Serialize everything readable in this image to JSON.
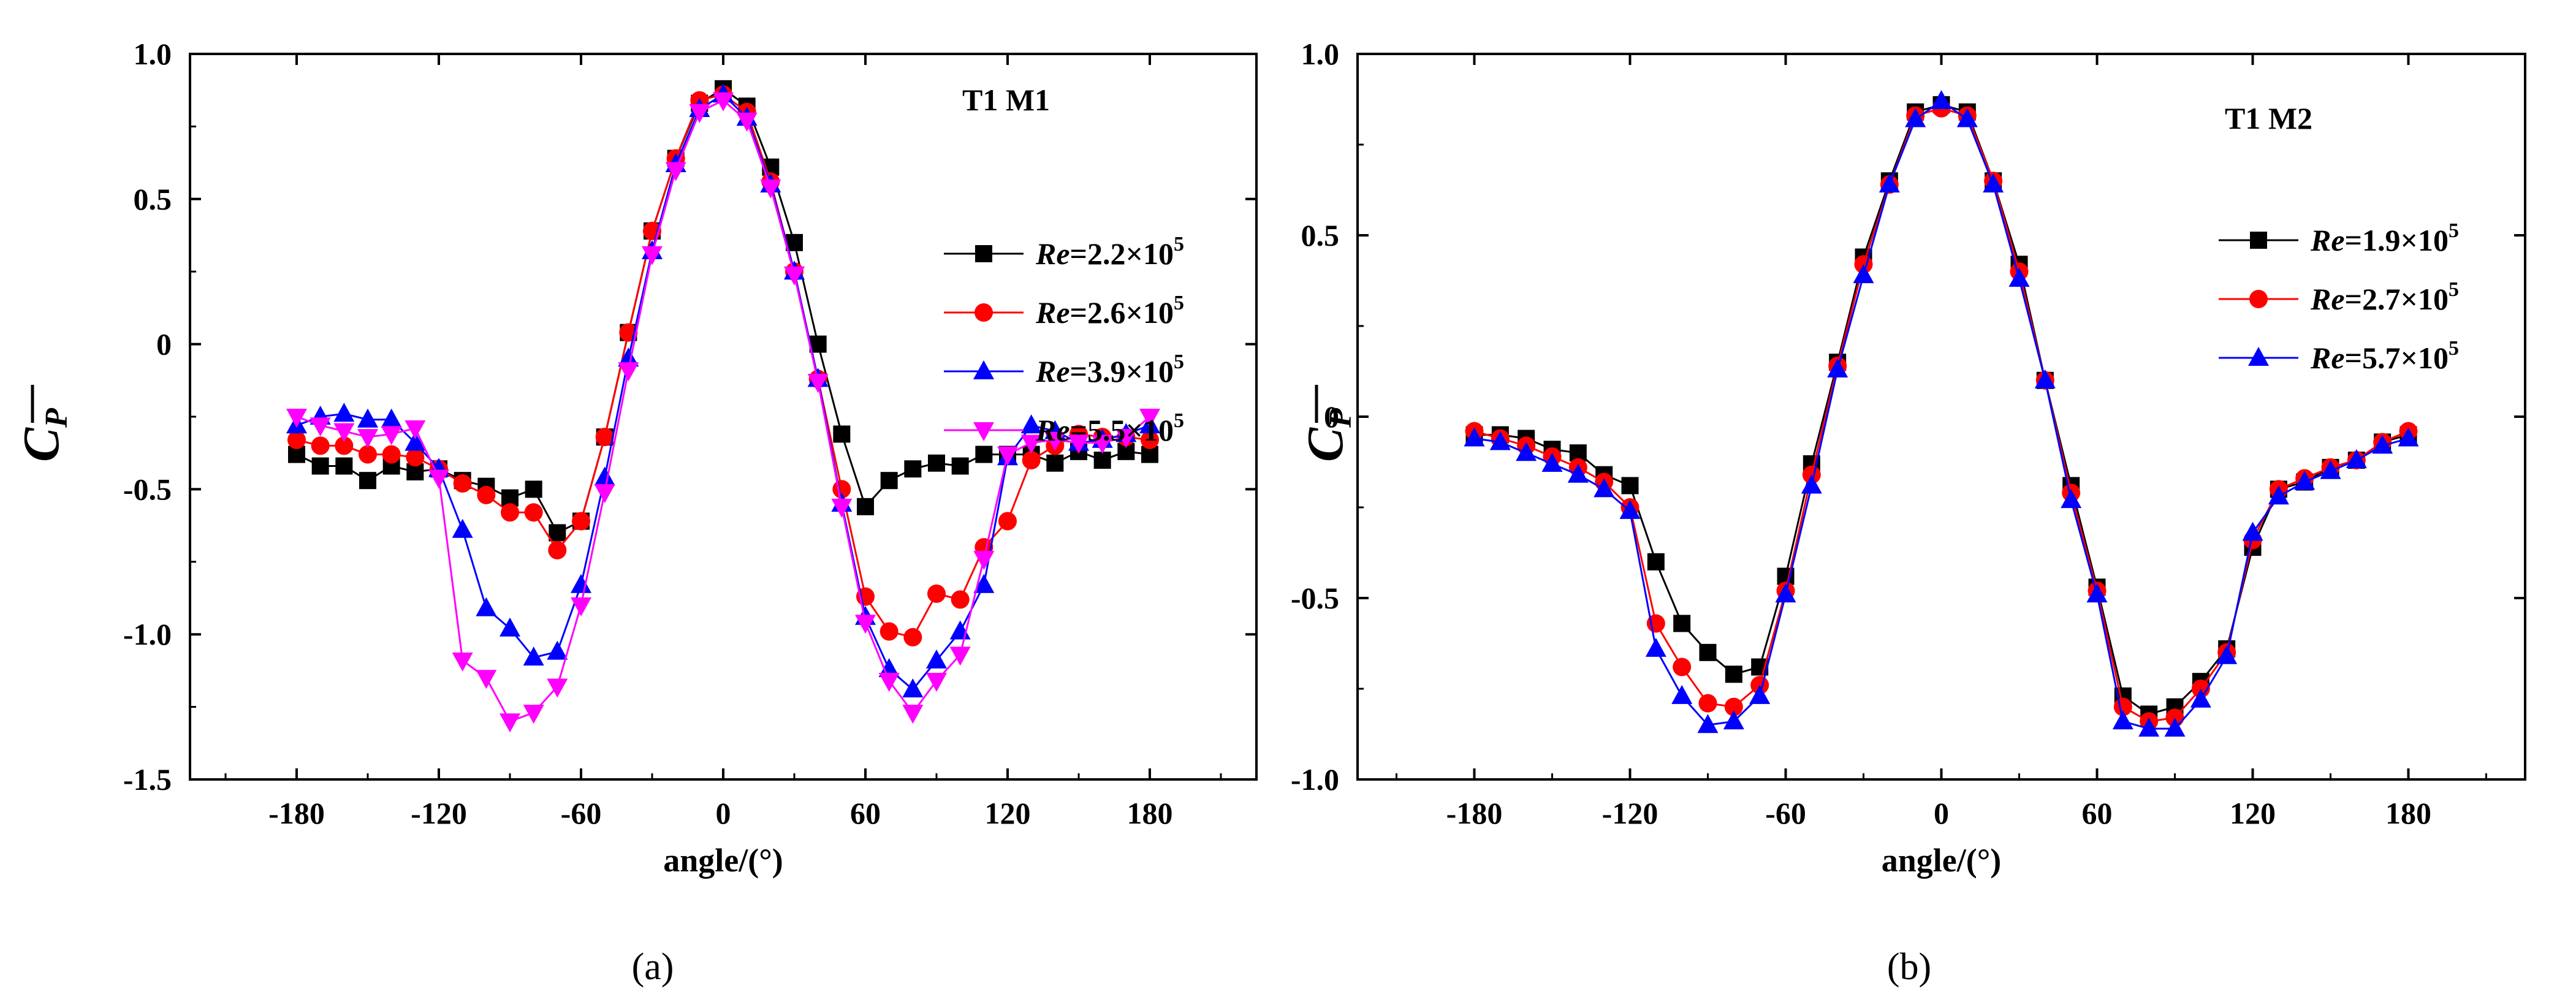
{
  "chart_data": [
    {
      "type": "line",
      "panel_label": "(a)",
      "annotation": "T1  M1",
      "xlabel": "angle/(°)",
      "ylabel": "C_P",
      "ylabel_display": "C",
      "ylabel_sub": "P",
      "xlim": [
        -225,
        225
      ],
      "ylim": [
        -1.5,
        1.0
      ],
      "xticks": [
        -180,
        -120,
        -60,
        0,
        60,
        120,
        180
      ],
      "xtick_labels": [
        "-180",
        "-120",
        "-60",
        "0",
        "60",
        "120",
        "180"
      ],
      "yticks": [
        1.0,
        0.5,
        0,
        -0.5,
        -1.0,
        -1.5
      ],
      "ytick_labels": [
        "1.0",
        "0.5",
        "0",
        "-0.5",
        "-1.0",
        "-1.5"
      ],
      "x": [
        -180,
        -170,
        -160,
        -150,
        -140,
        -130,
        -120,
        -110,
        -100,
        -90,
        -80,
        -70,
        -60,
        -50,
        -40,
        -30,
        -20,
        -10,
        0,
        10,
        20,
        30,
        40,
        50,
        60,
        70,
        80,
        90,
        100,
        110,
        120,
        130,
        140,
        150,
        160,
        170,
        180
      ],
      "series": [
        {
          "name": "Re=2.2×10^5",
          "re_prefix": "Re",
          "re_value": "=2.2×10",
          "re_exp": "5",
          "color": "#000000",
          "marker": "square",
          "values": [
            -0.38,
            -0.42,
            -0.42,
            -0.47,
            -0.42,
            -0.44,
            -0.43,
            -0.47,
            -0.49,
            -0.53,
            -0.5,
            -0.65,
            -0.61,
            -0.32,
            0.04,
            0.39,
            0.64,
            0.83,
            0.88,
            0.82,
            0.61,
            0.35,
            0.0,
            -0.31,
            -0.56,
            -0.47,
            -0.43,
            -0.41,
            -0.42,
            -0.38,
            -0.38,
            -0.38,
            -0.41,
            -0.37,
            -0.4,
            -0.37,
            -0.38
          ]
        },
        {
          "name": "Re=2.6×10^5",
          "re_prefix": "Re",
          "re_value": "=2.6×10",
          "re_exp": "5",
          "color": "#ff0000",
          "marker": "circle",
          "values": [
            -0.33,
            -0.35,
            -0.35,
            -0.38,
            -0.38,
            -0.39,
            -0.43,
            -0.48,
            -0.52,
            -0.58,
            -0.58,
            -0.71,
            -0.61,
            -0.32,
            0.04,
            0.39,
            0.64,
            0.84,
            0.86,
            0.8,
            0.56,
            0.25,
            -0.12,
            -0.5,
            -0.87,
            -0.99,
            -1.01,
            -0.86,
            -0.88,
            -0.7,
            -0.61,
            -0.4,
            -0.35,
            -0.31,
            -0.32,
            -0.32,
            -0.33
          ]
        },
        {
          "name": "Re=3.9×10^5",
          "re_prefix": "Re",
          "re_value": "=3.9×10",
          "re_exp": "5",
          "color": "#0000ff",
          "marker": "triangle-up",
          "values": [
            -0.28,
            -0.25,
            -0.24,
            -0.26,
            -0.26,
            -0.34,
            -0.43,
            -0.64,
            -0.91,
            -0.98,
            -1.08,
            -1.06,
            -0.83,
            -0.46,
            -0.05,
            0.32,
            0.62,
            0.81,
            0.86,
            0.78,
            0.55,
            0.25,
            -0.12,
            -0.55,
            -0.94,
            -1.12,
            -1.19,
            -1.09,
            -0.99,
            -0.83,
            -0.39,
            -0.28,
            -0.3,
            -0.34,
            -0.33,
            -0.31,
            -0.28
          ]
        },
        {
          "name": "Re=5.5×10^5",
          "re_prefix": "Re",
          "re_value": "=5.5×10",
          "re_exp": "5",
          "color": "#ff00ff",
          "marker": "triangle-down",
          "values": [
            -0.25,
            -0.28,
            -0.3,
            -0.32,
            -0.31,
            -0.29,
            -0.46,
            -1.09,
            -1.15,
            -1.3,
            -1.27,
            -1.18,
            -0.9,
            -0.51,
            -0.09,
            0.31,
            0.6,
            0.8,
            0.84,
            0.77,
            0.54,
            0.24,
            -0.13,
            -0.56,
            -0.96,
            -1.16,
            -1.27,
            -1.16,
            -1.07,
            -0.74,
            -0.38,
            -0.34,
            -0.33,
            -0.34,
            -0.34,
            -0.32,
            -0.25
          ]
        }
      ]
    },
    {
      "type": "line",
      "panel_label": "(b)",
      "annotation": "T1  M2",
      "xlabel": "angle/(°)",
      "ylabel": "C_P",
      "ylabel_display": "C",
      "ylabel_sub": "P",
      "xlim": [
        -225,
        225
      ],
      "ylim": [
        -1.0,
        1.0
      ],
      "xticks": [
        -180,
        -120,
        -60,
        0,
        60,
        120,
        180
      ],
      "xtick_labels": [
        "-180",
        "-120",
        "-60",
        "0",
        "60",
        "120",
        "180"
      ],
      "yticks": [
        1.0,
        0.5,
        0,
        -0.5,
        -1.0
      ],
      "ytick_labels": [
        "1.0",
        "0.5",
        "0",
        "-0.5",
        "-1.0"
      ],
      "x": [
        -180,
        -170,
        -160,
        -150,
        -140,
        -130,
        -120,
        -110,
        -100,
        -90,
        -80,
        -70,
        -60,
        -50,
        -40,
        -30,
        -20,
        -10,
        0,
        10,
        20,
        30,
        40,
        50,
        60,
        70,
        80,
        90,
        100,
        110,
        120,
        130,
        140,
        150,
        160,
        170,
        180
      ],
      "series": [
        {
          "name": "Re=1.9×10^5",
          "re_prefix": "Re",
          "re_value": "=1.9×10",
          "re_exp": "5",
          "color": "#000000",
          "marker": "square",
          "values": [
            -0.05,
            -0.05,
            -0.06,
            -0.09,
            -0.1,
            -0.16,
            -0.19,
            -0.4,
            -0.57,
            -0.65,
            -0.71,
            -0.69,
            -0.44,
            -0.13,
            0.15,
            0.44,
            0.65,
            0.84,
            0.86,
            0.84,
            0.65,
            0.42,
            0.1,
            -0.19,
            -0.47,
            -0.77,
            -0.82,
            -0.8,
            -0.73,
            -0.64,
            -0.36,
            -0.2,
            -0.18,
            -0.14,
            -0.12,
            -0.07,
            -0.05
          ]
        },
        {
          "name": "Re=2.7×10^5",
          "re_prefix": "Re",
          "re_value": "=2.7×10",
          "re_exp": "5",
          "color": "#ff0000",
          "marker": "circle",
          "values": [
            -0.04,
            -0.06,
            -0.08,
            -0.11,
            -0.14,
            -0.18,
            -0.25,
            -0.57,
            -0.69,
            -0.79,
            -0.8,
            -0.74,
            -0.48,
            -0.16,
            0.14,
            0.42,
            0.64,
            0.83,
            0.85,
            0.83,
            0.65,
            0.4,
            0.1,
            -0.21,
            -0.48,
            -0.8,
            -0.84,
            -0.83,
            -0.75,
            -0.65,
            -0.34,
            -0.2,
            -0.17,
            -0.14,
            -0.12,
            -0.07,
            -0.04
          ]
        },
        {
          "name": "Re=5.7×10^5",
          "re_prefix": "Re",
          "re_value": "=5.7×10",
          "re_exp": "5",
          "color": "#0000ff",
          "marker": "triangle-up",
          "values": [
            -0.06,
            -0.07,
            -0.1,
            -0.13,
            -0.16,
            -0.2,
            -0.26,
            -0.64,
            -0.77,
            -0.85,
            -0.84,
            -0.77,
            -0.49,
            -0.19,
            0.13,
            0.39,
            0.64,
            0.82,
            0.87,
            0.82,
            0.64,
            0.38,
            0.1,
            -0.23,
            -0.49,
            -0.84,
            -0.86,
            -0.86,
            -0.78,
            -0.66,
            -0.32,
            -0.22,
            -0.18,
            -0.15,
            -0.12,
            -0.08,
            -0.06
          ]
        }
      ]
    }
  ]
}
